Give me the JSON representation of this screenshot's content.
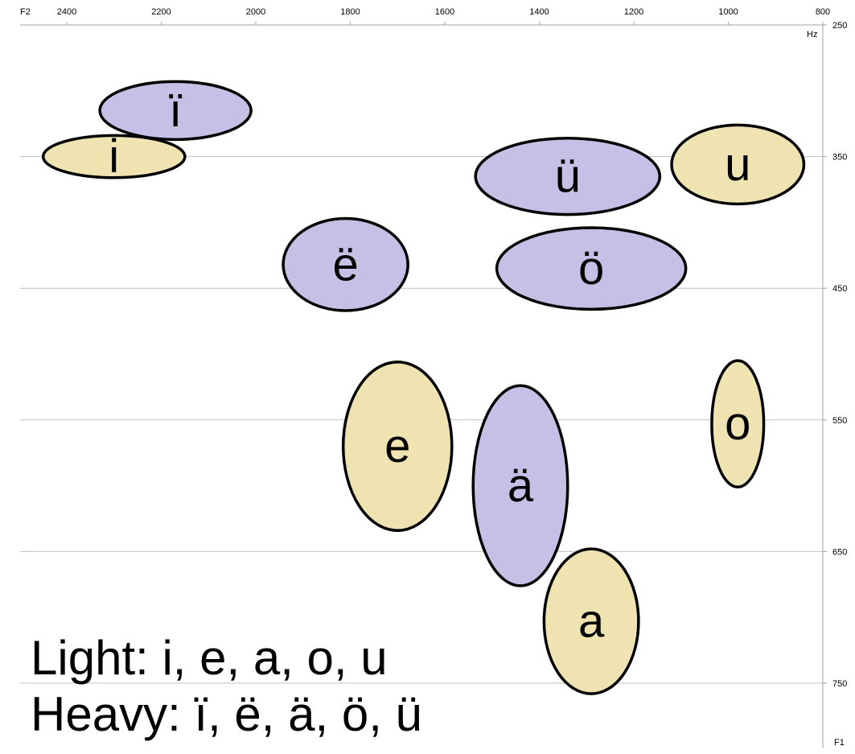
{
  "chart_data": {
    "type": "scatter",
    "title": "",
    "x_axis": {
      "label": "F2",
      "unit": "",
      "range": [
        2500,
        800
      ],
      "reversed": true,
      "ticks": [
        "2400",
        "2200",
        "2000",
        "1800",
        "1600",
        "1400",
        "1200",
        "1000",
        "800"
      ],
      "position": "top"
    },
    "y_axis": {
      "label": "F1",
      "unit": "Hz",
      "range": [
        250,
        775
      ],
      "reversed": true,
      "ticks": [
        "250",
        "350",
        "450",
        "550",
        "650",
        "750"
      ],
      "position": "right"
    },
    "grid": {
      "horizontal": true,
      "vertical": false
    },
    "series": [
      {
        "name": "Light",
        "color": "#efe3b2",
        "points": [
          {
            "label": "i",
            "f2": 2300,
            "f1": 350,
            "f2_spread": 150,
            "f1_spread": 16
          },
          {
            "label": "e",
            "f2": 1700,
            "f1": 570,
            "f2_spread": 115,
            "f1_spread": 64
          },
          {
            "label": "a",
            "f2": 1290,
            "f1": 703,
            "f2_spread": 100,
            "f1_spread": 55
          },
          {
            "label": "o",
            "f2": 980,
            "f1": 553,
            "f2_spread": 55,
            "f1_spread": 48
          },
          {
            "label": "u",
            "f2": 980,
            "f1": 356,
            "f2_spread": 140,
            "f1_spread": 30
          }
        ]
      },
      {
        "name": "Heavy",
        "color": "#c7c0e6",
        "points": [
          {
            "label": "ï",
            "f2": 2170,
            "f1": 315,
            "f2_spread": 160,
            "f1_spread": 22
          },
          {
            "label": "ë",
            "f2": 1810,
            "f1": 432,
            "f2_spread": 132,
            "f1_spread": 35
          },
          {
            "label": "ä",
            "f2": 1440,
            "f1": 600,
            "f2_spread": 100,
            "f1_spread": 76
          },
          {
            "label": "ö",
            "f2": 1290,
            "f1": 435,
            "f2_spread": 200,
            "f1_spread": 31
          },
          {
            "label": "ü",
            "f2": 1340,
            "f1": 365,
            "f2_spread": 195,
            "f1_spread": 29
          }
        ]
      }
    ]
  },
  "legend": {
    "light_line": "Light: i, e, a, o, u",
    "heavy_line": "Heavy: ï, ë, ä, ö, ü"
  }
}
